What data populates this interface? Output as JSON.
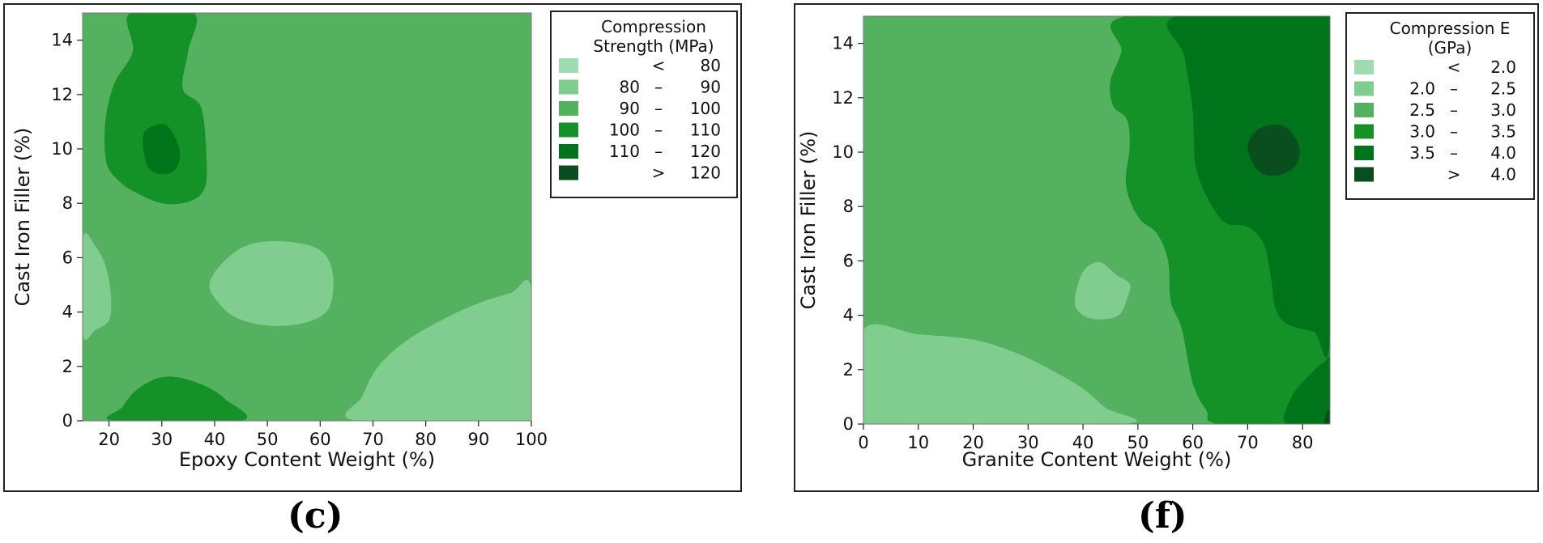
{
  "chart_data": [
    {
      "type": "heatmap",
      "subtype": "filled-contour",
      "panel_label": "(c)",
      "xlabel": "Epoxy Content Weight (%)",
      "ylabel": "Cast Iron Filler (%)",
      "xlim": [
        15,
        100
      ],
      "ylim": [
        0,
        15
      ],
      "xticks": [
        "20",
        "30",
        "40",
        "50",
        "60",
        "70",
        "80",
        "90",
        "100"
      ],
      "yticks": [
        "0",
        "2",
        "4",
        "6",
        "8",
        "10",
        "12",
        "14"
      ],
      "legend": {
        "title": [
          "Compression",
          "Strength (MPa)"
        ],
        "placement": "right",
        "entries": [
          {
            "lo": "",
            "op": "<",
            "hi": "80",
            "color": "#9edcb0"
          },
          {
            "lo": "80",
            "op": "–",
            "hi": "90",
            "color": "#81cc8f"
          },
          {
            "lo": "90",
            "op": "–",
            "hi": "100",
            "color": "#54b160"
          },
          {
            "lo": "100",
            "op": "–",
            "hi": "110",
            "color": "#159227"
          },
          {
            "lo": "110",
            "op": "–",
            "hi": "120",
            "color": "#00741a"
          },
          {
            "lo": "",
            "op": ">",
            "hi": "120",
            "color": "#0a4e20"
          }
        ]
      },
      "base_level": 2,
      "regions": [
        {
          "level": 3,
          "points": [
            [
              24,
              15
            ],
            [
              36,
              15
            ],
            [
              35,
              13.6
            ],
            [
              34,
              12.2
            ],
            [
              37.5,
              11.5
            ],
            [
              38.5,
              9.5
            ],
            [
              38,
              8.5
            ],
            [
              35,
              8.05
            ],
            [
              30,
              8
            ],
            [
              25,
              8.4
            ],
            [
              22,
              8.8
            ],
            [
              19.5,
              9.5
            ],
            [
              19.3,
              11
            ],
            [
              21,
              12.4
            ],
            [
              24.5,
              13.6
            ]
          ]
        },
        {
          "level": 4,
          "points": [
            [
              26.5,
              10.5
            ],
            [
              28.5,
              10.85
            ],
            [
              31,
              10.85
            ],
            [
              33,
              10.2
            ],
            [
              33.4,
              9.6
            ],
            [
              32,
              9.15
            ],
            [
              29,
              9.1
            ],
            [
              27,
              9.5
            ]
          ]
        },
        {
          "level": 3,
          "points": [
            [
              21,
              0
            ],
            [
              22.5,
              0.5
            ],
            [
              25,
              1.1
            ],
            [
              29,
              1.55
            ],
            [
              33,
              1.6
            ],
            [
              38,
              1.3
            ],
            [
              42,
              0.8
            ],
            [
              45,
              0
            ]
          ]
        },
        {
          "level": 1,
          "points": [
            [
              15,
              6.7
            ],
            [
              17.5,
              6.4
            ],
            [
              19.5,
              5.6
            ],
            [
              20.4,
              4.5
            ],
            [
              20,
              3.7
            ],
            [
              17.5,
              3.35
            ],
            [
              15,
              3.2
            ]
          ]
        },
        {
          "level": 1,
          "points": [
            [
              39,
              5
            ],
            [
              41,
              5.7
            ],
            [
              45,
              6.35
            ],
            [
              50,
              6.6
            ],
            [
              57,
              6.5
            ],
            [
              61,
              6.1
            ],
            [
              62.5,
              5.2
            ],
            [
              61.5,
              4.1
            ],
            [
              57,
              3.6
            ],
            [
              50,
              3.5
            ],
            [
              44,
              3.8
            ],
            [
              40.5,
              4.4
            ]
          ]
        },
        {
          "level": 1,
          "points": [
            [
              67,
              0
            ],
            [
              68,
              0.9
            ],
            [
              71,
              2
            ],
            [
              76,
              2.9
            ],
            [
              82,
              3.6
            ],
            [
              89,
              4.25
            ],
            [
              96,
              4.7
            ],
            [
              100,
              4.85
            ],
            [
              100,
              0
            ]
          ]
        }
      ]
    },
    {
      "type": "heatmap",
      "subtype": "filled-contour",
      "panel_label": "(f)",
      "xlabel": "Granite Content Weight (%)",
      "ylabel": "Cast Iron Filler (%)",
      "xlim": [
        0,
        85
      ],
      "ylim": [
        0,
        15
      ],
      "xticks": [
        "0",
        "10",
        "20",
        "30",
        "40",
        "50",
        "60",
        "70",
        "80"
      ],
      "yticks": [
        "0",
        "2",
        "4",
        "6",
        "8",
        "10",
        "12",
        "14"
      ],
      "legend": {
        "title": [
          "Compression E",
          "(GPa)"
        ],
        "placement": "right",
        "entries": [
          {
            "lo": "",
            "op": "<",
            "hi": "2.0",
            "color": "#9edcb0"
          },
          {
            "lo": "2.0",
            "op": "–",
            "hi": "2.5",
            "color": "#81cc8f"
          },
          {
            "lo": "2.5",
            "op": "–",
            "hi": "3.0",
            "color": "#54b160"
          },
          {
            "lo": "3.0",
            "op": "–",
            "hi": "3.5",
            "color": "#159227"
          },
          {
            "lo": "3.5",
            "op": "–",
            "hi": "4.0",
            "color": "#00741a"
          },
          {
            "lo": "",
            "op": ">",
            "hi": "4.0",
            "color": "#0a4e20"
          }
        ]
      },
      "base_level": 2,
      "regions": [
        {
          "level": 3,
          "points": [
            [
              48,
              15
            ],
            [
              47,
              13.7
            ],
            [
              45,
              12.6
            ],
            [
              45.5,
              11.7
            ],
            [
              48,
              11.2
            ],
            [
              48.5,
              10.2
            ],
            [
              47.8,
              9
            ],
            [
              48.6,
              8.2
            ],
            [
              50.5,
              7.5
            ],
            [
              53.5,
              7
            ],
            [
              55.5,
              6
            ],
            [
              56,
              4.5
            ],
            [
              58,
              3.5
            ],
            [
              60,
              1.5
            ],
            [
              62.5,
              0.5
            ],
            [
              65,
              0
            ],
            [
              85,
              0
            ],
            [
              85,
              15
            ]
          ]
        },
        {
          "level": 4,
          "points": [
            [
              57,
              15
            ],
            [
              58.5,
              13.5
            ],
            [
              60,
              11.5
            ],
            [
              60.5,
              9.5
            ],
            [
              63,
              8.2
            ],
            [
              66,
              7.4
            ],
            [
              70,
              7.25
            ],
            [
              73,
              6.6
            ],
            [
              74.3,
              5.3
            ],
            [
              75,
              4.3
            ],
            [
              77,
              3.7
            ],
            [
              82,
              3.4
            ],
            [
              85,
              3.3
            ],
            [
              85,
              15
            ]
          ]
        },
        {
          "level": 5,
          "points": [
            [
              70,
              10.2
            ],
            [
              72,
              10.85
            ],
            [
              76,
              11
            ],
            [
              78.5,
              10.6
            ],
            [
              79.5,
              10
            ],
            [
              78.5,
              9.45
            ],
            [
              75.5,
              9.15
            ],
            [
              72,
              9.3
            ]
          ]
        },
        {
          "level": 4,
          "points": [
            [
              77,
              0
            ],
            [
              78,
              1
            ],
            [
              81,
              1.75
            ],
            [
              84,
              2.3
            ],
            [
              85,
              2.3
            ],
            [
              85,
              0
            ]
          ]
        },
        {
          "level": 5,
          "points": [
            [
              84,
              0
            ],
            [
              84.3,
              0.4
            ],
            [
              85,
              0.5
            ],
            [
              85,
              0
            ]
          ]
        },
        {
          "level": 1,
          "points": [
            [
              0,
              3.45
            ],
            [
              10,
              3.3
            ],
            [
              20,
              3.1
            ],
            [
              28,
              2.6
            ],
            [
              35,
              1.9
            ],
            [
              40,
              1.3
            ],
            [
              44,
              0.6
            ],
            [
              47,
              0
            ],
            [
              0,
              0
            ]
          ]
        },
        {
          "level": 1,
          "points": [
            [
              38.5,
              4.5
            ],
            [
              40,
              5.6
            ],
            [
              43,
              5.95
            ],
            [
              46,
              5.5
            ],
            [
              48.5,
              5.15
            ],
            [
              48,
              4.6
            ],
            [
              46.5,
              4
            ],
            [
              43,
              3.85
            ],
            [
              40,
              4
            ]
          ]
        }
      ]
    }
  ]
}
